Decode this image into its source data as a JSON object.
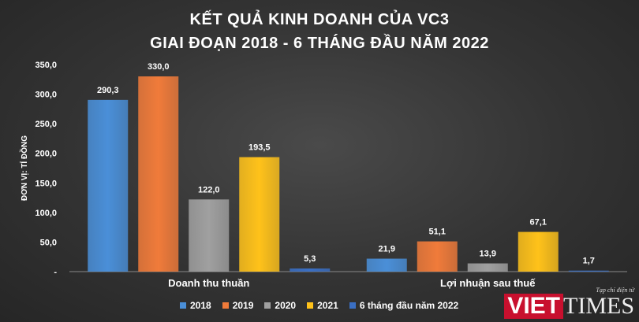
{
  "chart_data": {
    "type": "bar",
    "title": "KẾT QUẢ KINH DOANH CỦA VC3",
    "subtitle": "GIAI ĐOẠN 2018 - 6 THÁNG ĐẦU NĂM 2022",
    "ylabel": "ĐƠN VỊ: TỈ ĐỒNG",
    "xlabel": "",
    "ylim": [
      0,
      350
    ],
    "yticks": [
      "-",
      "50,0",
      "100,0",
      "150,0",
      "200,0",
      "250,0",
      "300,0",
      "350,0"
    ],
    "categories": [
      "Doanh thu thuần",
      "Lợi nhuận sau thuế"
    ],
    "series": [
      {
        "name": "2018",
        "values": [
          290.3,
          21.9
        ],
        "labels": [
          "290,3",
          "21,9"
        ],
        "color": "#4a8fd8"
      },
      {
        "name": "2019",
        "values": [
          330.0,
          51.1
        ],
        "labels": [
          "330,0",
          "51,1"
        ],
        "color": "#f07b3a"
      },
      {
        "name": "2020",
        "values": [
          122.0,
          13.9
        ],
        "labels": [
          "122,0",
          "13,9"
        ],
        "color": "#a0a0a0"
      },
      {
        "name": "2021",
        "values": [
          193.5,
          67.1
        ],
        "labels": [
          "193,5",
          "67,1"
        ],
        "color": "#ffc21a"
      },
      {
        "name": "6 tháng đầu năm 2022",
        "values": [
          5.3,
          1.7
        ],
        "labels": [
          "5,3",
          "1,7"
        ],
        "color": "#3a6fc4"
      }
    ],
    "legend_position": "bottom",
    "grid": false
  },
  "watermark": {
    "tagline": "Tạp chí điện tử",
    "brand_viet": "VIET",
    "brand_times": "TIMES"
  }
}
